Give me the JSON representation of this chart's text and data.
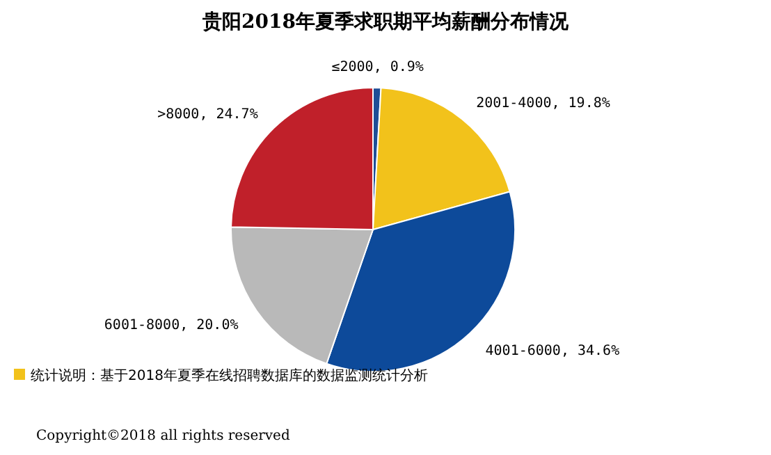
{
  "chart_data": {
    "type": "pie",
    "title": "贵阳2018年夏季求职期平均薪酬分布情况",
    "categories": [
      "≤2000",
      "2001-4000",
      "4001-6000",
      "6001-8000",
      ">8000"
    ],
    "values": [
      0.9,
      19.8,
      34.6,
      20.0,
      24.7
    ],
    "value_labels": [
      "0.9%",
      "19.8%",
      "34.6%",
      "20.0%",
      "24.7%"
    ],
    "colors": [
      "#1f4e96",
      "#f2c21b",
      "#0d4a9a",
      "#b9b9b9",
      "#c0202a"
    ],
    "annotations": [
      "统计说明：基于2018年夏季在线招聘数据库的数据监测统计分析",
      "Copyright©2018 all rights reserved"
    ]
  }
}
